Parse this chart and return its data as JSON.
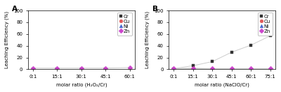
{
  "panel_A": {
    "title": "A",
    "xlabel": "molar ratio (H₂O₂/Cr)",
    "ylabel": "Leaching Efficiency (%)",
    "xtick_labels": [
      "0:1",
      "15:1",
      "30:1",
      "45:1",
      "60:1"
    ],
    "x_values": [
      0,
      15,
      30,
      45,
      60
    ],
    "series": {
      "Cr": {
        "values": [
          1,
          1,
          1,
          1,
          1
        ],
        "color": "#333333",
        "marker": "s"
      },
      "Cu": {
        "values": [
          1,
          1,
          1,
          1,
          1
        ],
        "color": "#e05a5a",
        "marker": "o"
      },
      "Ni": {
        "values": [
          1,
          1,
          1,
          1,
          1
        ],
        "color": "#4466cc",
        "marker": "^"
      },
      "Zn": {
        "values": [
          2,
          2,
          2,
          2,
          3
        ],
        "color": "#cc44cc",
        "marker": "D"
      }
    },
    "ylim": [
      0,
      100
    ],
    "yticks": [
      0,
      20,
      40,
      60,
      80,
      100
    ]
  },
  "panel_B": {
    "title": "B",
    "xlabel": "molar ratio (NaClO/Cr)",
    "ylabel": "Leaching Efficiency (%)",
    "xtick_labels": [
      "0:1",
      "15:1",
      "30:1",
      "45:1",
      "60:1",
      "75:1"
    ],
    "x_values": [
      0,
      15,
      30,
      45,
      60,
      75
    ],
    "series": {
      "Cr": {
        "values": [
          1,
          6,
          13,
          29,
          41,
          57
        ],
        "color": "#333333",
        "marker": "s"
      },
      "Cu": {
        "values": [
          1,
          2,
          1,
          1,
          1,
          1
        ],
        "color": "#e05a5a",
        "marker": "o"
      },
      "Ni": {
        "values": [
          1,
          1,
          1,
          1,
          1,
          1
        ],
        "color": "#4466cc",
        "marker": "^"
      },
      "Zn": {
        "values": [
          2,
          2,
          2,
          2,
          2,
          2
        ],
        "color": "#cc44cc",
        "marker": "D"
      }
    },
    "ylim": [
      0,
      100
    ],
    "yticks": [
      0,
      20,
      40,
      60,
      80,
      100
    ]
  },
  "legend_order": [
    "Cr",
    "Cu",
    "Ni",
    "Zn"
  ],
  "line_color": "#cccccc",
  "marker_size": 3.5,
  "font_size": 5.0,
  "label_font_size": 5.0,
  "title_font_size": 7.5
}
